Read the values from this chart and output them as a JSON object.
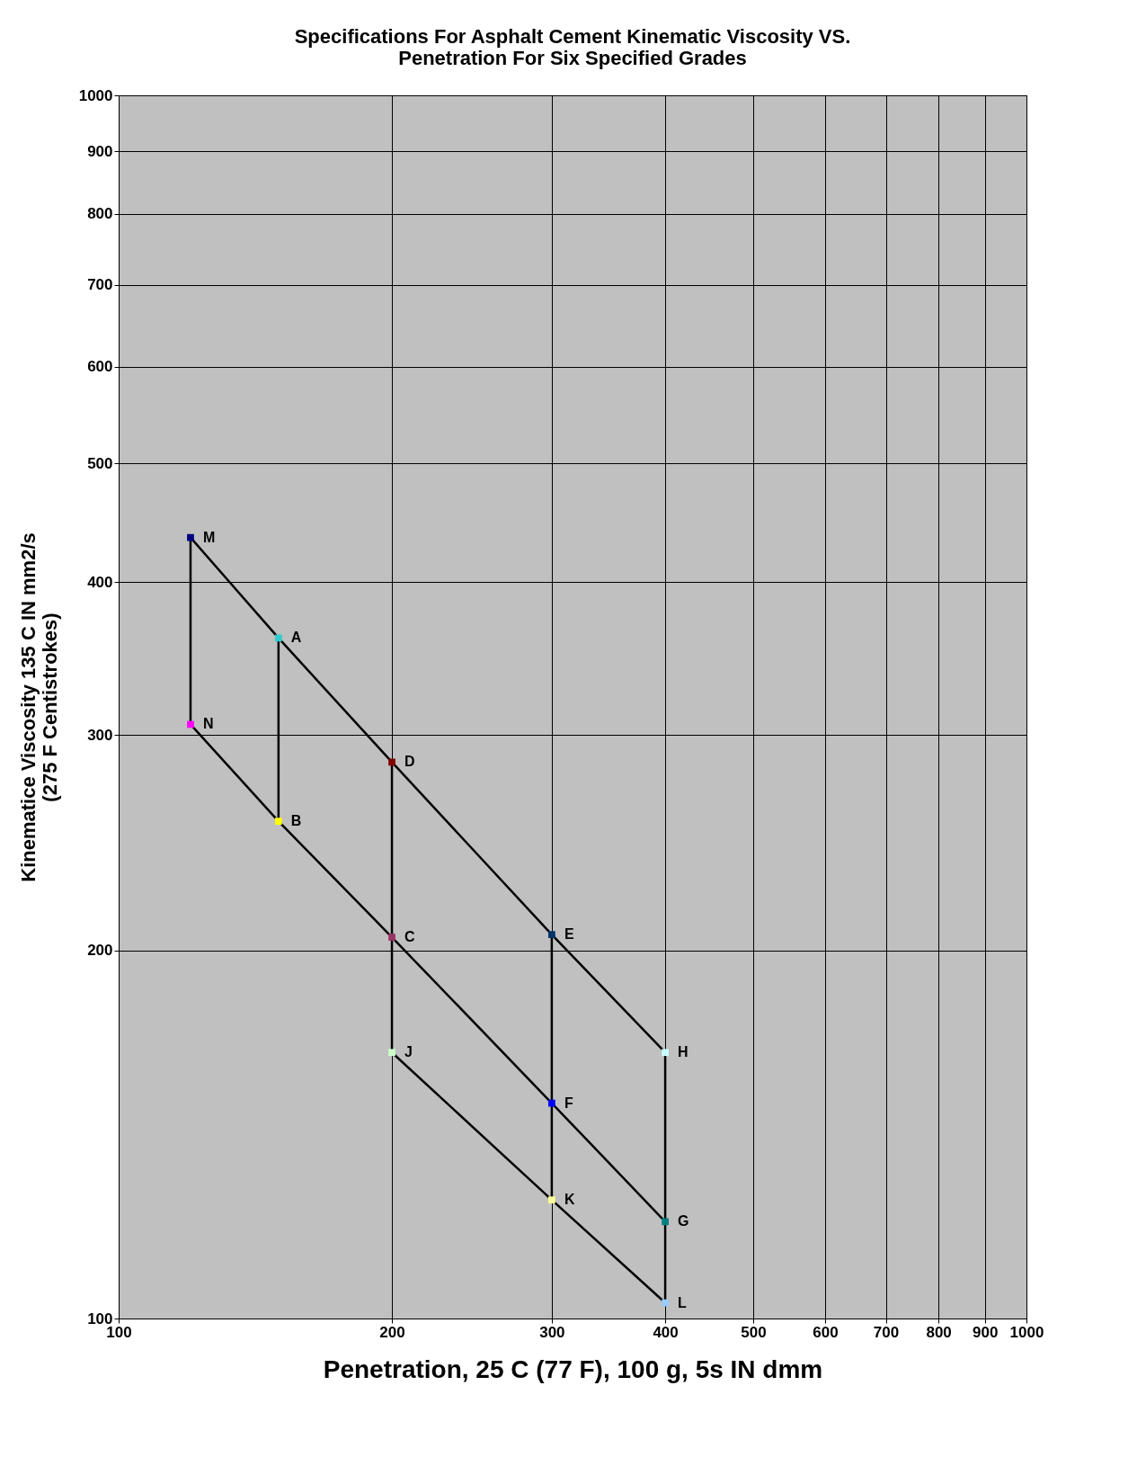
{
  "chart_data": {
    "type": "line",
    "title": "Specifications For Asphalt Cement  Kinematic Viscosity  VS.\nPenetration For Six Specified Grades",
    "xlabel": "Penetration, 25 C (77 F), 100 g, 5s IN dmm",
    "ylabel": "Kinematice Viscosity 135 C IN mm2/s\n(275 F Centistrokes)",
    "log": "xy",
    "grid": true,
    "line_style": "solid",
    "xlim": [
      100,
      1000
    ],
    "xticks": [
      100,
      200,
      300,
      400,
      500,
      600,
      700,
      800,
      900,
      {
        "value": 1000,
        "label": "1000"
      }
    ],
    "ylim": [
      100,
      1000
    ],
    "yticks": [
      100,
      200,
      300,
      400,
      500,
      600,
      700,
      800,
      900,
      {
        "value": 1000,
        "label": "1000"
      }
    ],
    "series": [
      {
        "color": "#000000",
        "x": [
          120,
          150,
          200,
          300,
          400
        ],
        "values": [
          435,
          360,
          285,
          206,
          165
        ]
      },
      {
        "color": "#000000",
        "x": [
          120,
          150,
          200,
          300,
          400
        ],
        "values": [
          306,
          255,
          205,
          150,
          120
        ]
      },
      {
        "color": "#000000",
        "x": [
          200,
          300,
          400
        ],
        "values": [
          165,
          125,
          103
        ]
      },
      {
        "color": "#000000",
        "x": [
          120,
          120
        ],
        "values": [
          435,
          306
        ]
      },
      {
        "color": "#000000",
        "x": [
          150,
          150
        ],
        "values": [
          360,
          255
        ]
      },
      {
        "color": "#000000",
        "x": [
          200,
          200,
          200
        ],
        "values": [
          285,
          205,
          165
        ]
      },
      {
        "color": "#000000",
        "x": [
          300,
          300,
          300
        ],
        "values": [
          206,
          150,
          125
        ]
      },
      {
        "color": "#000000",
        "x": [
          400,
          400,
          400
        ],
        "values": [
          165,
          120,
          103
        ]
      },
      {
        "type": "scatter",
        "marker": "square",
        "x": [
          120,
          120,
          150,
          150,
          200,
          200,
          200,
          300,
          300,
          300,
          400,
          400,
          400
        ],
        "values": [
          435,
          306,
          360,
          255,
          285,
          205,
          165,
          206,
          150,
          125,
          165,
          120,
          103
        ],
        "colors": [
          "#000080",
          "#ff00ff",
          "#33cccc",
          "#ffff00",
          "#800000",
          "#993366",
          "#ccffcc",
          "#003366",
          "#0000ff",
          "#ffff99",
          "#ccffff",
          "#008080",
          "#99ccff"
        ]
      }
    ],
    "annotations": [
      {
        "text": "M",
        "x": 120,
        "y": 435
      },
      {
        "text": "N",
        "x": 120,
        "y": 306
      },
      {
        "text": "A",
        "x": 150,
        "y": 360
      },
      {
        "text": "B",
        "x": 150,
        "y": 255
      },
      {
        "text": "D",
        "x": 200,
        "y": 285
      },
      {
        "text": "C",
        "x": 200,
        "y": 205
      },
      {
        "text": "J",
        "x": 200,
        "y": 165
      },
      {
        "text": "E",
        "x": 300,
        "y": 206
      },
      {
        "text": "F",
        "x": 300,
        "y": 150
      },
      {
        "text": "K",
        "x": 300,
        "y": 125
      },
      {
        "text": "H",
        "x": 400,
        "y": 165
      },
      {
        "text": "G",
        "x": 400,
        "y": 120
      },
      {
        "text": "L",
        "x": 400,
        "y": 103
      }
    ]
  }
}
